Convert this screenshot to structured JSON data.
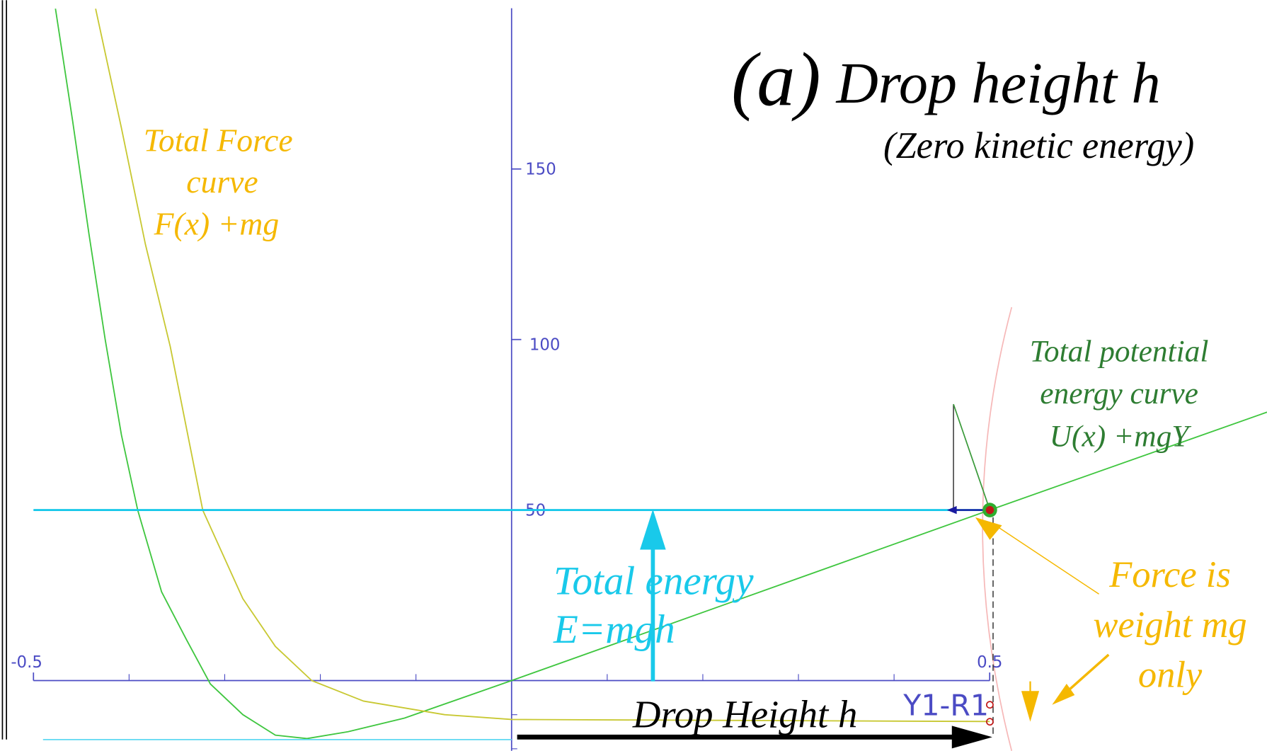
{
  "chart_data": {
    "type": "line",
    "title": "Drop height h",
    "title_prefix": "(a)",
    "subtitle": "(Zero kinetic energy)",
    "xlim": [
      -0.535,
      0.79
    ],
    "ylim": [
      -20.6,
      199.5
    ],
    "xticks": [
      -0.5,
      0.5
    ],
    "yticks": [
      50,
      100,
      150
    ],
    "series": [
      {
        "color": "#3fc63f",
        "x": [
          -0.477,
          -0.459,
          -0.442,
          -0.425,
          -0.408,
          -0.391,
          -0.366,
          -0.34,
          -0.315,
          -0.281,
          -0.247,
          -0.214,
          -0.171,
          -0.112,
          0,
          0.5,
          0.79
        ],
        "values": [
          197,
          164,
          131,
          100,
          72,
          50,
          26,
          12,
          -1,
          -10,
          -16,
          -17,
          -15,
          -11,
          0,
          50,
          78.7
        ]
      },
      {
        "color": "#c8c832",
        "x": [
          -0.435,
          -0.408,
          -0.383,
          -0.357,
          -0.323,
          -0.281,
          -0.247,
          -0.209,
          -0.155,
          -0.07,
          0,
          0.5
        ],
        "values": [
          197,
          162,
          128,
          98,
          50,
          24,
          10,
          0,
          -6,
          -10,
          -11.4,
          -12
        ]
      },
      {
        "color": "#19c9ea",
        "x": [
          -0.5,
          0.5
        ],
        "values": [
          50,
          50
        ]
      },
      {
        "color": "#5fd8f2",
        "x": [
          -0.49,
          0
        ],
        "values": [
          -17.3,
          -17.3
        ]
      }
    ],
    "annotations": {
      "force_curve": [
        "Total Force",
        "curve",
        "F(x) +mg"
      ],
      "potential_curve": [
        "Total potential",
        "energy curve",
        "U(x) +mgY"
      ],
      "total_energy": [
        "Total energy",
        "E=mgh"
      ],
      "force_weight": [
        "Force is",
        "weight mg",
        "only"
      ],
      "drop_height": "Drop Height h",
      "point_label": "Y1-R1"
    }
  }
}
